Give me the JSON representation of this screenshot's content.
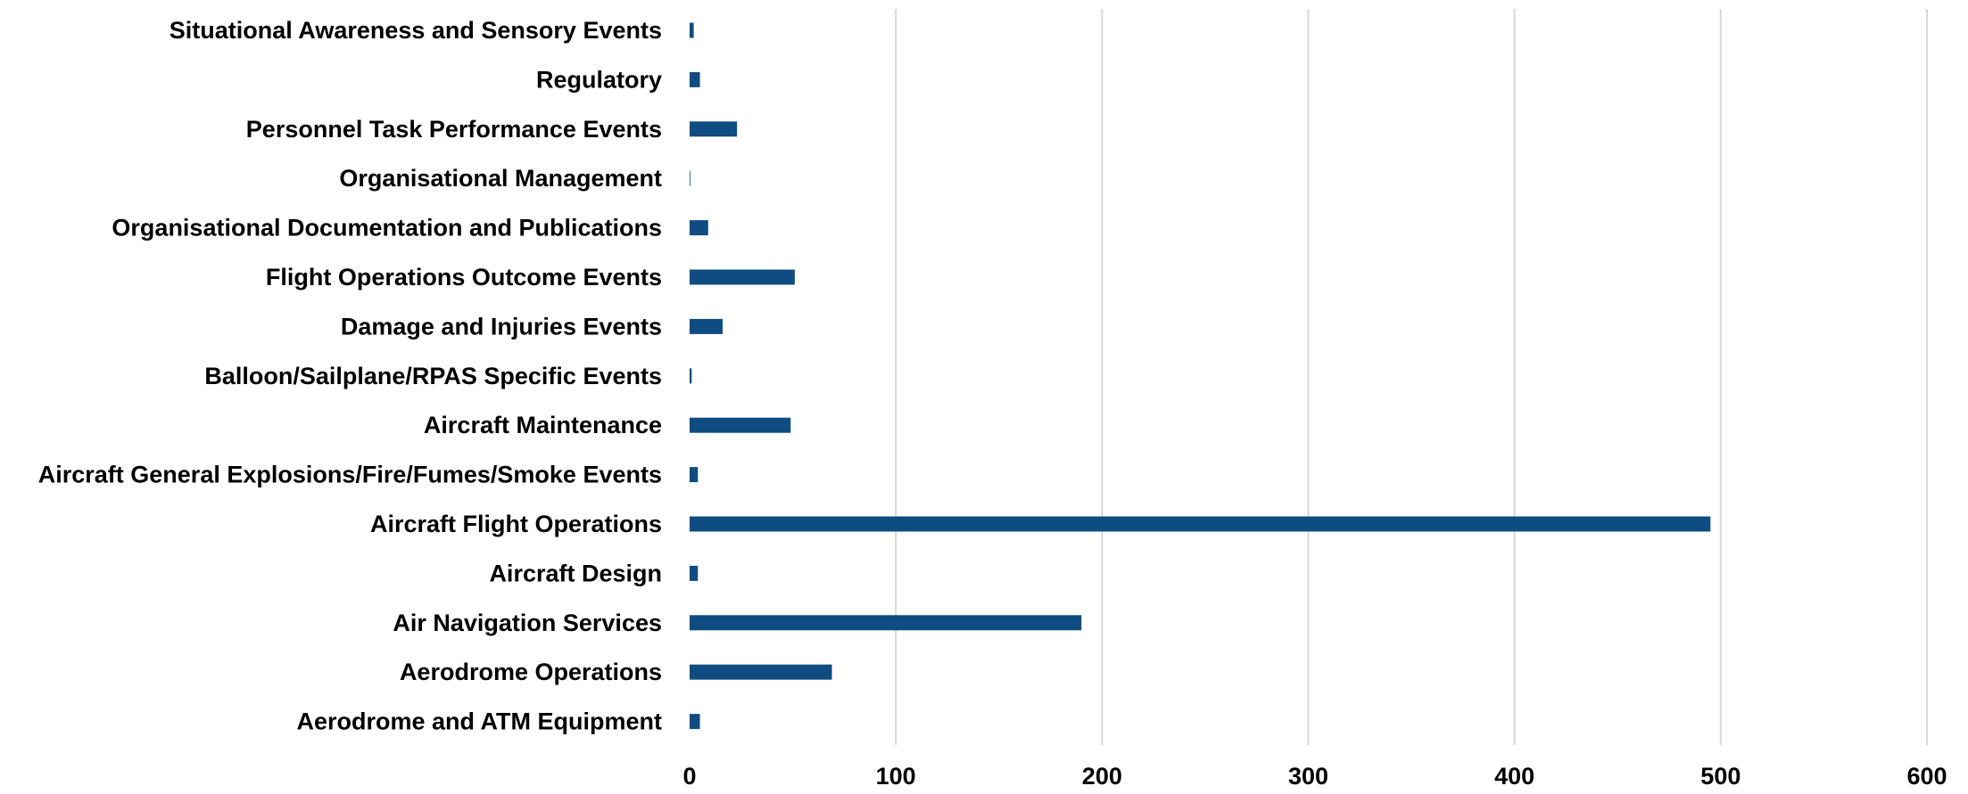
{
  "chart_data": {
    "type": "bar",
    "orientation": "horizontal",
    "categories": [
      "Situational Awareness and Sensory Events",
      "Regulatory",
      "Personnel Task Performance Events",
      "Organisational Management",
      "Organisational Documentation and Publications",
      "Flight Operations Outcome Events",
      "Damage and Injuries Events",
      "Balloon/Sailplane/RPAS Specific Events",
      "Aircraft Maintenance",
      "Aircraft General Explosions/Fire/Fumes/Smoke Events",
      "Aircraft Flight Operations",
      "Aircraft Design",
      "Air Navigation Services",
      "Aerodrome Operations",
      "Aerodrome and ATM Equipment"
    ],
    "values": [
      2,
      5,
      23,
      0,
      9,
      51,
      16,
      1,
      49,
      4,
      495,
      4,
      190,
      69,
      5
    ],
    "bar_color": "#0f4c81",
    "xlim": [
      0,
      600
    ],
    "xticks": [
      "0",
      "100",
      "200",
      "300",
      "400",
      "500",
      "600"
    ],
    "grid": "vertical",
    "title": "",
    "xlabel": "",
    "ylabel": ""
  }
}
